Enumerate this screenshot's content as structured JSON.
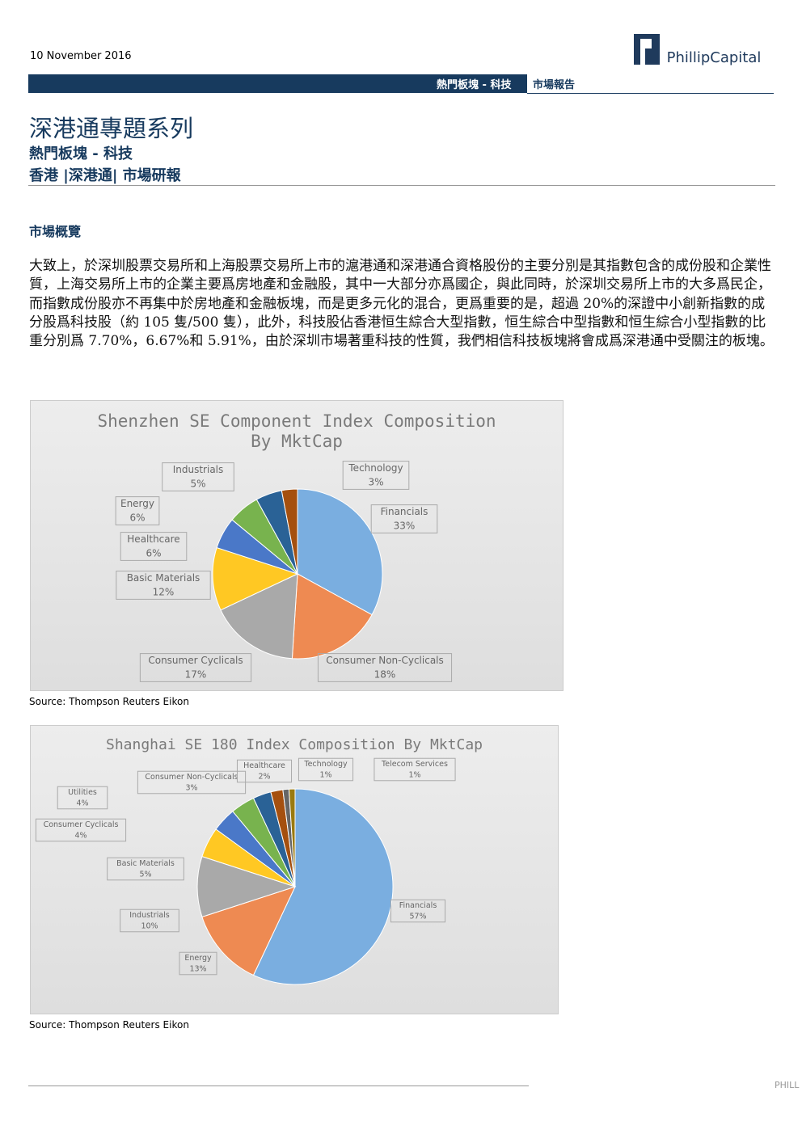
{
  "header": {
    "date": "10 November 2016",
    "logo": "PhillipCapital",
    "bar_left": "熱門板塊 - 科技",
    "bar_right": "市場報告"
  },
  "title": "深港通專題系列",
  "subtitle": [
    "熱門板塊 - 科技",
    "香港 |深港通| 市場研報"
  ],
  "section": {
    "heading": "市場概覽",
    "paragraph": "大致上，於深圳股票交易所和上海股票交易所上市的滬港通和深港通合資格股份的主要分別是其指數包含的成份股和企業性質，上海交易所上市的企業主要爲房地產和金融股，其中一大部分亦爲國企，與此同時，於深圳交易所上市的大多爲民企，而指數成份股亦不再集中於房地產和金融板塊，而是更多元化的混合，更爲重要的是，超過 20%的深證中小創新指數的成分股爲科技股（約 105 隻/500 隻），此外，科技股佔香港恒生綜合大型指數，恒生綜合中型指數和恒生綜合小型指數的比重分別爲 7.70%，6.67%和 5.91%，由於深圳市場著重科技的性質，我們相信科技板塊將會成爲深港通中受關注的板塊。"
  },
  "chart_data": [
    {
      "type": "pie",
      "title": "Shenzhen SE Component Index Composition By MktCap",
      "source": "Source: Thompson Reuters Eikon",
      "categories": [
        "Financials",
        "Consumer Non-Cyclicals",
        "Consumer Cyclicals",
        "Basic Materials",
        "Healthcare",
        "Energy",
        "Industrials",
        "Technology"
      ],
      "values": [
        33,
        18,
        17,
        12,
        6,
        6,
        5,
        3
      ],
      "value_labels": [
        "33%",
        "18%",
        "17%",
        "12%",
        "6%",
        "6%",
        "5%",
        "3%"
      ],
      "colors": [
        "#7aaee0",
        "#ee8a52",
        "#a9a9a9",
        "#ffc823",
        "#4a78c8",
        "#78b34e",
        "#2a6296",
        "#a5500f"
      ]
    },
    {
      "type": "pie",
      "title": "Shanghai SE 180 Index Composition By MktCap",
      "source": "Source: Thompson Reuters Eikon",
      "categories": [
        "Financials",
        "Energy",
        "Industrials",
        "Basic Materials",
        "Consumer Cyclicals",
        "Utilities",
        "Consumer Non-Cyclicals",
        "Healthcare",
        "Technology",
        "Telecom Services"
      ],
      "values": [
        57,
        13,
        10,
        5,
        4,
        4,
        3,
        2,
        1,
        1
      ],
      "value_labels": [
        "57%",
        "13%",
        "10%",
        "5%",
        "4%",
        "4%",
        "3%",
        "2%",
        "1%",
        "1%"
      ],
      "colors": [
        "#7aaee0",
        "#ee8a52",
        "#a9a9a9",
        "#ffc823",
        "#4a78c8",
        "#78b34e",
        "#2a6296",
        "#a5500f",
        "#666666",
        "#9a7a10"
      ]
    }
  ],
  "footer": "PHILL"
}
